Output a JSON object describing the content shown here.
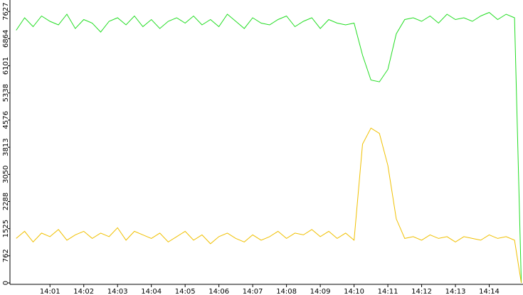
{
  "chart_data": {
    "type": "line",
    "x": [
      0,
      0.25,
      0.5,
      0.75,
      1,
      1.25,
      1.5,
      1.75,
      2,
      2.25,
      2.5,
      2.75,
      3,
      3.25,
      3.5,
      3.75,
      4,
      4.25,
      4.5,
      4.75,
      5,
      5.25,
      5.5,
      5.75,
      6,
      6.25,
      6.5,
      6.75,
      7,
      7.25,
      7.5,
      7.75,
      8,
      8.25,
      8.5,
      8.75,
      9,
      9.25,
      9.5,
      9.75,
      10,
      10.25,
      10.5,
      10.75,
      11,
      11.25,
      11.5,
      11.75,
      12,
      12.25,
      12.5,
      12.75,
      13,
      13.25,
      13.5,
      13.75,
      14,
      14.25,
      14.5,
      14.75,
      14.95
    ],
    "series": [
      {
        "color": "#22dd22",
        "values": [
          7100,
          7450,
          7200,
          7500,
          7350,
          7250,
          7550,
          7150,
          7400,
          7300,
          7050,
          7350,
          7450,
          7250,
          7500,
          7200,
          7400,
          7150,
          7350,
          7450,
          7300,
          7500,
          7250,
          7400,
          7200,
          7550,
          7350,
          7150,
          7450,
          7300,
          7250,
          7400,
          7500,
          7200,
          7350,
          7450,
          7150,
          7400,
          7300,
          7250,
          7300,
          6400,
          5700,
          5650,
          6000,
          7000,
          7400,
          7450,
          7350,
          7500,
          7300,
          7550,
          7400,
          7450,
          7350,
          7500,
          7600,
          7400,
          7550,
          7450,
          0
        ]
      },
      {
        "color": "#f0c000",
        "values": [
          1250,
          1450,
          1150,
          1400,
          1300,
          1500,
          1200,
          1350,
          1450,
          1250,
          1400,
          1300,
          1550,
          1200,
          1450,
          1350,
          1250,
          1400,
          1150,
          1300,
          1450,
          1200,
          1350,
          1100,
          1300,
          1400,
          1250,
          1150,
          1350,
          1200,
          1300,
          1450,
          1250,
          1400,
          1350,
          1500,
          1300,
          1450,
          1250,
          1400,
          1200,
          3900,
          4350,
          4200,
          3300,
          1800,
          1250,
          1300,
          1200,
          1350,
          1250,
          1300,
          1150,
          1300,
          1250,
          1200,
          1350,
          1250,
          1300,
          1200,
          0
        ]
      }
    ],
    "xlim": [
      -0.1,
      15
    ],
    "xticks": [
      {
        "value": 1,
        "label": "14:01"
      },
      {
        "value": 2,
        "label": "14:02"
      },
      {
        "value": 3,
        "label": "14:03"
      },
      {
        "value": 4,
        "label": "14:04"
      },
      {
        "value": 5,
        "label": "14:05"
      },
      {
        "value": 6,
        "label": "14:06"
      },
      {
        "value": 7,
        "label": "14:07"
      },
      {
        "value": 8,
        "label": "14:08"
      },
      {
        "value": 9,
        "label": "14:09"
      },
      {
        "value": 10,
        "label": "14:10"
      },
      {
        "value": 11,
        "label": "14:11"
      },
      {
        "value": 12,
        "label": "14:12"
      },
      {
        "value": 13,
        "label": "14:13"
      },
      {
        "value": 14,
        "label": "14:14"
      }
    ],
    "ylim": [
      0,
      7950
    ],
    "yticks": [
      0,
      762,
      1525,
      2288,
      3050,
      3813,
      4576,
      5338,
      6101,
      6864,
      7627
    ]
  }
}
